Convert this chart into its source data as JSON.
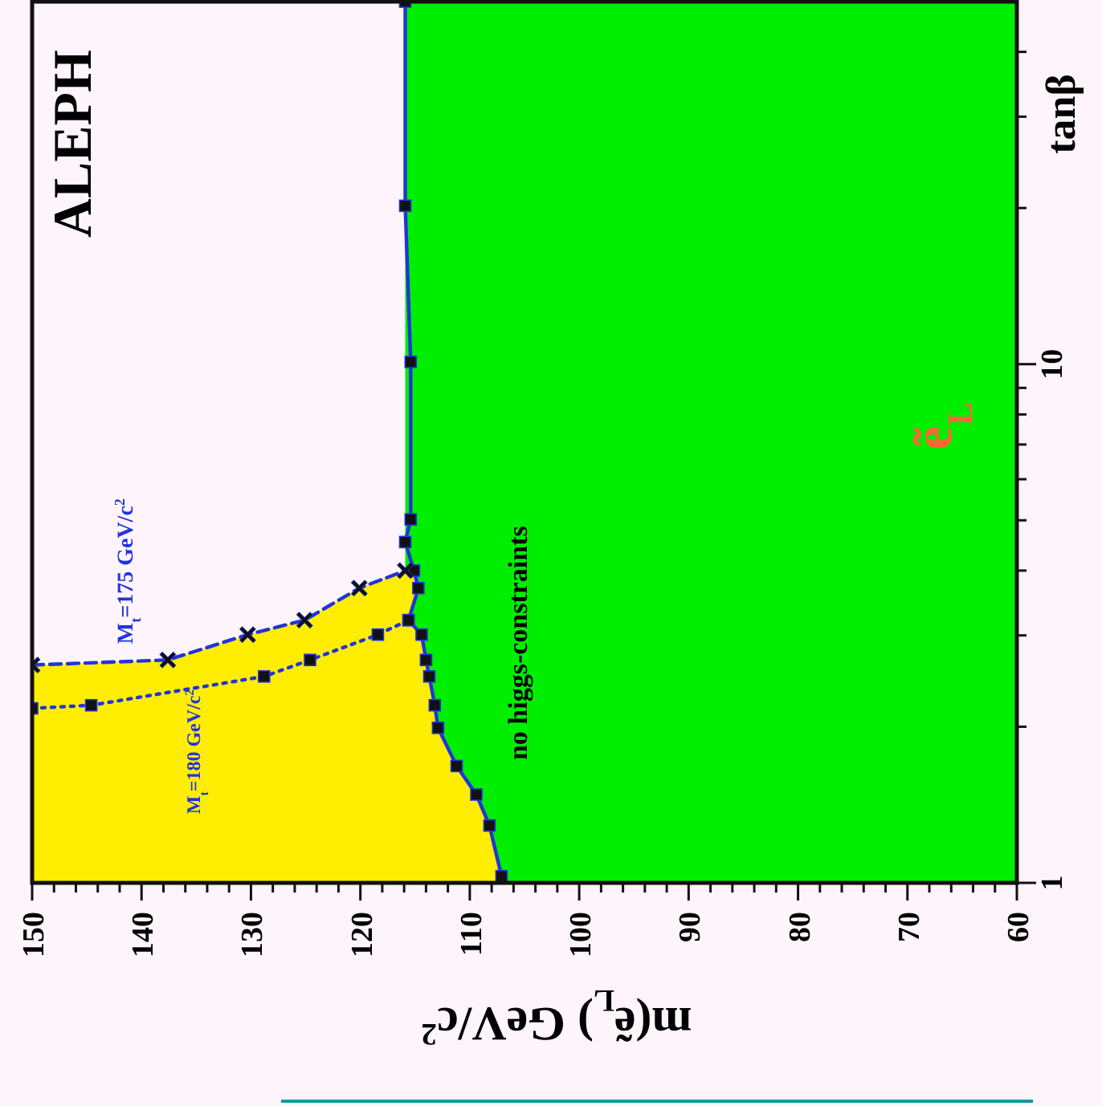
{
  "chart_data": {
    "type": "line",
    "xlabel": "m(ẽ$_{L}$)  GeV/c$^{2}$",
    "ylabel": "tanβ",
    "log": "y",
    "xlim": [
      150,
      60
    ],
    "ylim": [
      1,
      50
    ],
    "xticks": [
      150,
      {
        "value": 148,
        "label": null
      },
      {
        "value": 146,
        "label": null
      },
      {
        "value": 144,
        "label": null
      },
      {
        "value": 142,
        "label": null
      },
      140,
      {
        "value": 138,
        "label": null
      },
      {
        "value": 136,
        "label": null
      },
      {
        "value": 134,
        "label": null
      },
      {
        "value": 132,
        "label": null
      },
      130,
      {
        "value": 128,
        "label": null
      },
      {
        "value": 126,
        "label": null
      },
      {
        "value": 124,
        "label": null
      },
      {
        "value": 122,
        "label": null
      },
      120,
      {
        "value": 118,
        "label": null
      },
      {
        "value": 116,
        "label": null
      },
      {
        "value": 114,
        "label": null
      },
      {
        "value": 112,
        "label": null
      },
      110,
      {
        "value": 108,
        "label": null
      },
      {
        "value": 106,
        "label": null
      },
      {
        "value": 104,
        "label": null
      },
      {
        "value": 102,
        "label": null
      },
      100,
      {
        "value": 98,
        "label": null
      },
      {
        "value": 96,
        "label": null
      },
      {
        "value": 94,
        "label": null
      },
      {
        "value": 92,
        "label": null
      },
      90,
      {
        "value": 88,
        "label": null
      },
      {
        "value": 86,
        "label": null
      },
      {
        "value": 84,
        "label": null
      },
      {
        "value": 82,
        "label": null
      },
      80,
      {
        "value": 78,
        "label": null
      },
      {
        "value": 76,
        "label": null
      },
      {
        "value": 74,
        "label": null
      },
      {
        "value": 72,
        "label": null
      },
      70,
      {
        "value": 68,
        "label": null
      },
      {
        "value": 66,
        "label": null
      },
      {
        "value": 64,
        "label": null
      },
      {
        "value": 62,
        "label": null
      },
      60
    ],
    "yticks": [
      1,
      {
        "value": 2,
        "label": null
      },
      {
        "value": 3,
        "label": null
      },
      {
        "value": 4,
        "label": null
      },
      {
        "value": 5,
        "label": null
      },
      {
        "value": 6,
        "label": null
      },
      {
        "value": 7,
        "label": null
      },
      {
        "value": 8,
        "label": null
      },
      {
        "value": 9,
        "label": null
      },
      10,
      {
        "value": 20,
        "label": null
      },
      {
        "value": 30,
        "label": null
      },
      {
        "value": 40,
        "label": null
      }
    ],
    "grid": false,
    "bands": [
      {
        "axis": "x",
        "from": 115.9,
        "to": 60,
        "color": "#00ee00"
      }
    ],
    "series": [
      {
        "type": "area",
        "color": "#ffee00",
        "x": [
          150,
          137.6,
          130.3,
          125.1,
          120.1,
          115.9,
          115.1,
          114.7,
          115.6,
          114.4,
          114.0,
          113.7,
          113.2,
          112.9,
          111.2,
          109.4,
          108.2,
          107.1
        ],
        "values": [
          2.63,
          2.69,
          3.01,
          3.21,
          3.7,
          4.0,
          4.0,
          3.7,
          3.21,
          3.01,
          2.69,
          2.5,
          2.2,
          1.99,
          1.68,
          1.48,
          1.29,
          1.03
        ]
      },
      {
        "color": "#2233dd",
        "marker": "square",
        "line_style": "solid",
        "x": [
          115.9,
          115.9,
          115.4,
          115.4,
          115.9,
          115.1,
          114.7,
          115.6,
          114.4,
          114.0,
          113.7,
          113.2,
          112.9,
          111.2,
          109.4,
          108.2,
          107.1
        ],
        "values": [
          50,
          20.2,
          10.1,
          5.02,
          4.54,
          4.0,
          3.7,
          3.21,
          3.01,
          2.69,
          2.5,
          2.2,
          1.99,
          1.68,
          1.48,
          1.29,
          1.03
        ]
      },
      {
        "name": "M$_{t}$=175 GeV/c$^{2}$",
        "color": "#2233dd",
        "marker": "cross",
        "line_style": "dashed",
        "x": [
          150,
          137.6,
          130.3,
          125.1,
          120.1,
          115.9
        ],
        "values": [
          2.63,
          2.69,
          3.01,
          3.21,
          3.7,
          4.0
        ]
      },
      {
        "name": "M$_{t}$=180 GeV/c$^{2}$",
        "color": "#2233dd",
        "marker": "square",
        "line_style": "dotted",
        "x": [
          150,
          144.6,
          128.8,
          124.6,
          118.4,
          115.6
        ],
        "values": [
          2.17,
          2.2,
          2.5,
          2.69,
          3.01,
          3.21
        ]
      }
    ],
    "annotations": [
      "ALEPH",
      "no higgs-constraints",
      "ẽ$_{L}$"
    ]
  }
}
